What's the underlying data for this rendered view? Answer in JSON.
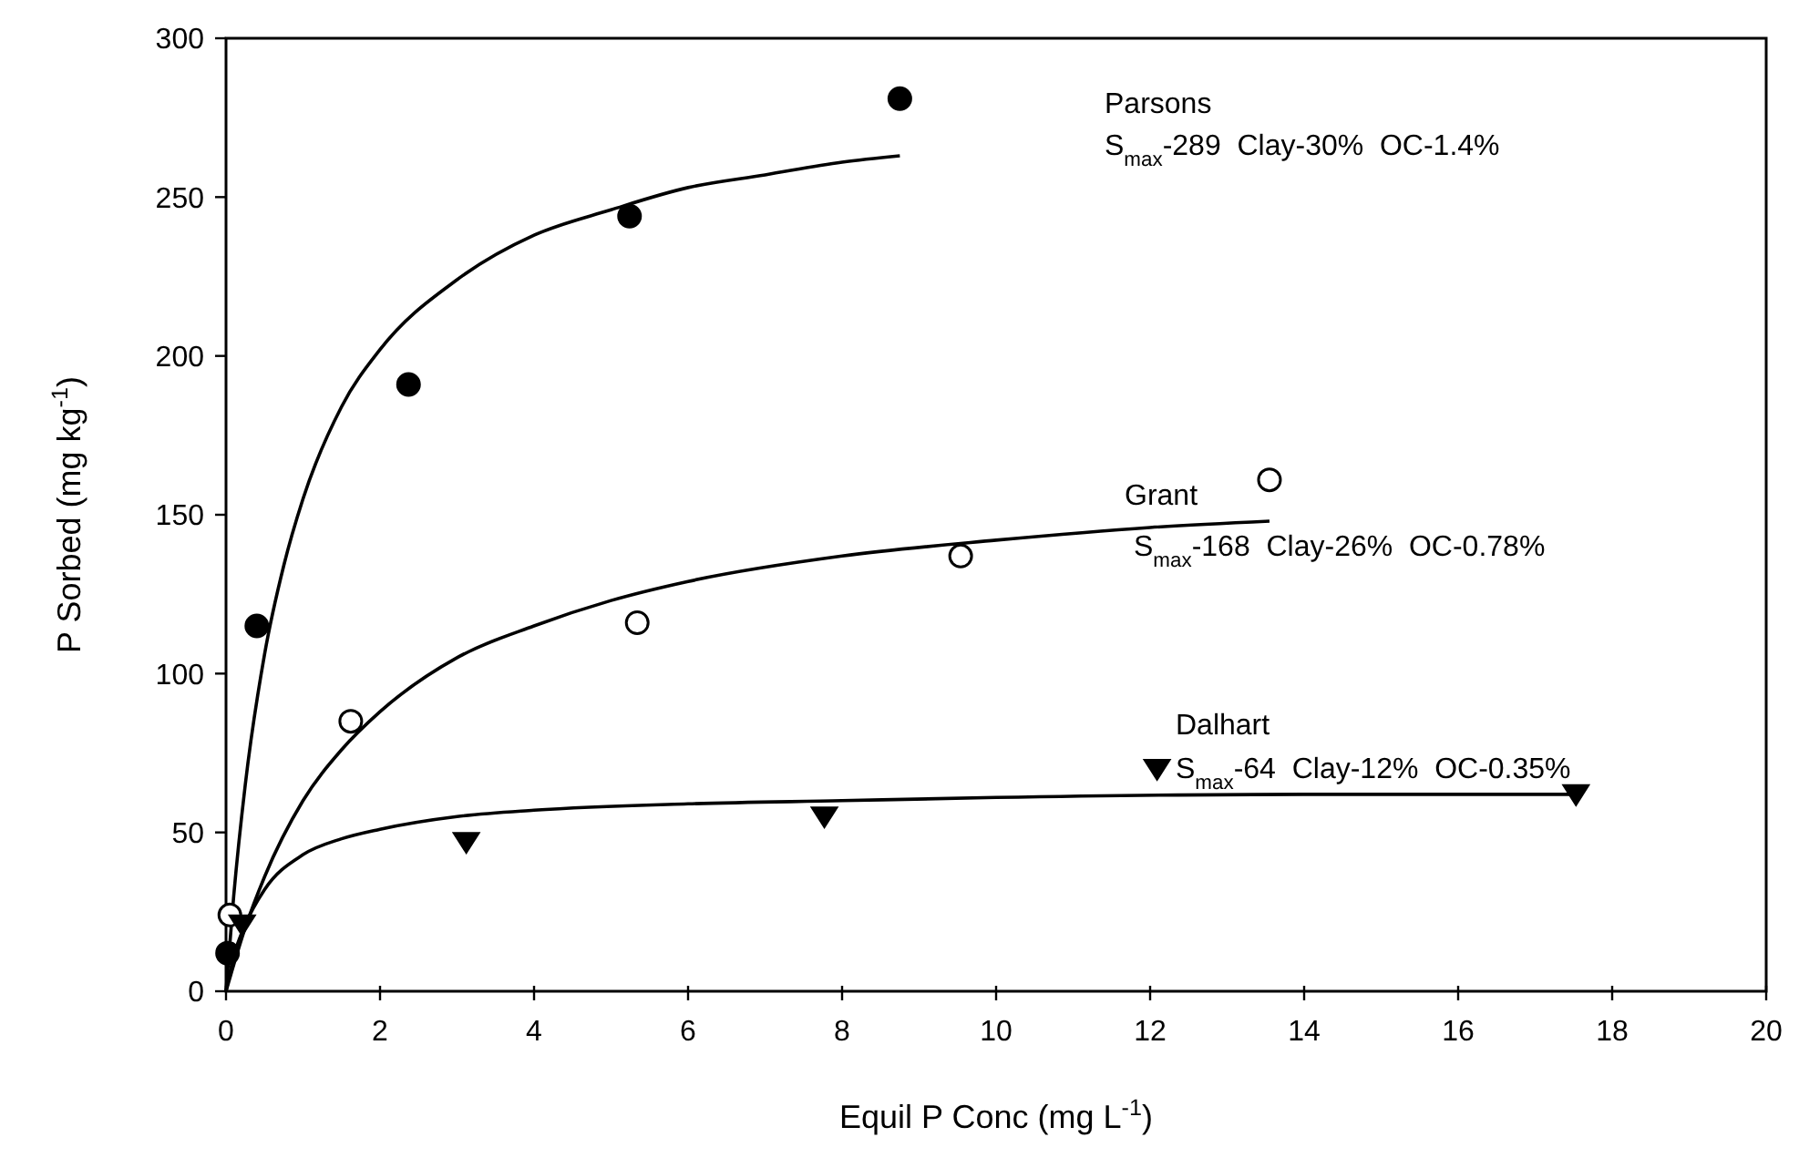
{
  "chart_data": {
    "type": "scatter",
    "xlabel": "Equil P Conc (mg L$^{-1}$)",
    "ylabel": "P Sorbed (mg kg$^{-1}$)",
    "xlim": [
      0,
      20
    ],
    "xticks": [
      0,
      2,
      4,
      6,
      8,
      10,
      12,
      14,
      16,
      18,
      20
    ],
    "ylim": [
      0,
      300
    ],
    "yticks": [
      0,
      50,
      100,
      150,
      200,
      250,
      300
    ],
    "grid": false,
    "series": [
      {
        "type": "scatter",
        "marker": "circle",
        "color": "#000000",
        "x": [
          0.02,
          0.4,
          2.37,
          5.24,
          8.75
        ],
        "values": [
          12,
          115,
          191,
          244,
          281
        ]
      },
      {
        "type": "scatter",
        "marker": "circle",
        "color": "#ffffff",
        "x": [
          0.05,
          1.62,
          5.34,
          9.54,
          13.55
        ],
        "values": [
          24,
          85,
          116,
          137,
          161
        ]
      },
      {
        "type": "scatter",
        "marker": "triangle",
        "color": "#000000",
        "x": [
          0.21,
          3.12,
          7.77,
          12.09,
          17.53
        ],
        "values": [
          21,
          47,
          55,
          70,
          62
        ]
      },
      {
        "type": "line",
        "marker": "none",
        "line_style": "solid",
        "color": "#000000",
        "x": [
          0,
          0.1,
          0.25,
          0.5,
          0.75,
          1,
          1.5,
          2,
          3,
          4,
          5,
          6,
          7,
          8,
          8.75
        ],
        "values": [
          0,
          30,
          65,
          106,
          134,
          155,
          184,
          202,
          224,
          238,
          246,
          253,
          257,
          261,
          263
        ]
      },
      {
        "type": "line",
        "marker": "none",
        "line_style": "solid",
        "color": "#000000",
        "x": [
          0,
          0.25,
          0.5,
          1,
          1.5,
          2,
          3,
          4,
          5,
          6,
          8,
          10,
          12,
          13.55
        ],
        "values": [
          0,
          20,
          36,
          60,
          76,
          88,
          105,
          115,
          123,
          129,
          137,
          142,
          146,
          148
        ]
      },
      {
        "type": "line",
        "marker": "none",
        "line_style": "solid",
        "color": "#000000",
        "x": [
          0,
          0.1,
          0.25,
          0.5,
          1,
          1.5,
          2,
          3,
          4,
          6,
          8,
          10,
          14,
          17.5
        ],
        "values": [
          0,
          11,
          21,
          32,
          43,
          48,
          51,
          55,
          57,
          59,
          60,
          61,
          62,
          62
        ]
      }
    ],
    "annotations": [
      "Parsons",
      "S$_{max}$-289  Clay-30%  OC-1.4%",
      "Grant",
      "S$_{max}$-168  Clay-26%  OC-0.78%",
      "Dalhart",
      "S$_{max}$-64  Clay-12%  OC-0.35%"
    ]
  }
}
